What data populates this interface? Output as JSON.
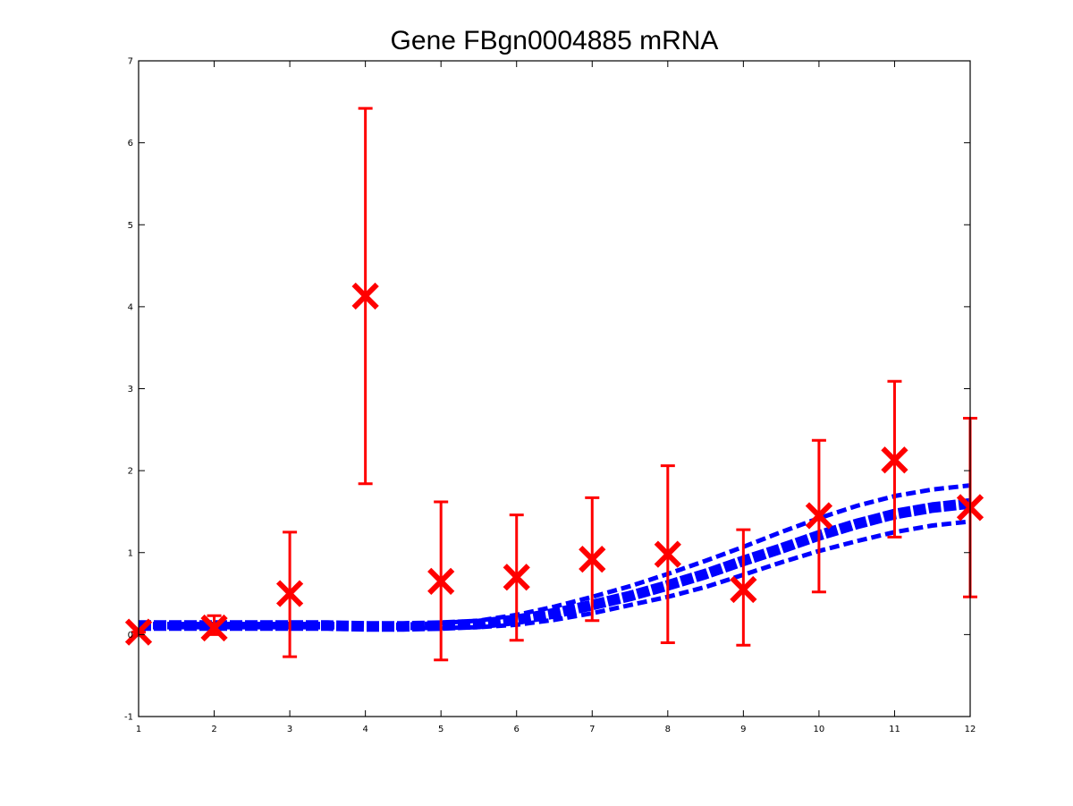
{
  "chart_data": {
    "type": "line",
    "title": "Gene FBgn0004885 mRNA",
    "xlabel": "",
    "ylabel": "",
    "xlim": [
      1,
      12
    ],
    "ylim": [
      -1,
      7
    ],
    "xticks": [
      "1",
      "2",
      "3",
      "4",
      "5",
      "6",
      "7",
      "8",
      "9",
      "10",
      "11",
      "12"
    ],
    "yticks": [
      "-1",
      "0",
      "1",
      "2",
      "3",
      "4",
      "5",
      "6",
      "7"
    ],
    "grid": false,
    "colors": {
      "model": "#0000ff",
      "data": "#ff0000"
    },
    "series": [
      {
        "kind": "mean",
        "style": "solid",
        "x": [
          1,
          1.5,
          2,
          2.5,
          3,
          3.5,
          4,
          4.5,
          5,
          5.5,
          6,
          6.5,
          7,
          7.5,
          8,
          8.5,
          9,
          9.5,
          10,
          10.5,
          11,
          11.5,
          12
        ],
        "values": [
          0.11,
          0.11,
          0.11,
          0.11,
          0.11,
          0.11,
          0.1,
          0.1,
          0.11,
          0.13,
          0.18,
          0.26,
          0.36,
          0.47,
          0.6,
          0.74,
          0.9,
          1.05,
          1.21,
          1.35,
          1.47,
          1.55,
          1.6
        ]
      },
      {
        "kind": "upper-bound",
        "style": "dashed",
        "x": [
          1,
          1.5,
          2,
          2.5,
          3,
          3.5,
          4,
          4.5,
          5,
          5.5,
          6,
          6.5,
          7,
          7.5,
          8,
          8.5,
          9,
          9.5,
          10,
          10.5,
          11,
          11.5,
          12
        ],
        "values": [
          0.13,
          0.13,
          0.13,
          0.13,
          0.13,
          0.13,
          0.12,
          0.12,
          0.14,
          0.17,
          0.24,
          0.34,
          0.46,
          0.59,
          0.74,
          0.9,
          1.07,
          1.25,
          1.42,
          1.57,
          1.69,
          1.77,
          1.82
        ]
      },
      {
        "kind": "lower-bound",
        "style": "dashed",
        "x": [
          1,
          1.5,
          2,
          2.5,
          3,
          3.5,
          4,
          4.5,
          5,
          5.5,
          6,
          6.5,
          7,
          7.5,
          8,
          8.5,
          9,
          9.5,
          10,
          10.5,
          11,
          11.5,
          12
        ],
        "values": [
          0.09,
          0.09,
          0.09,
          0.09,
          0.09,
          0.09,
          0.08,
          0.08,
          0.08,
          0.09,
          0.12,
          0.18,
          0.26,
          0.36,
          0.46,
          0.58,
          0.73,
          0.88,
          1.02,
          1.14,
          1.25,
          1.33,
          1.38
        ]
      }
    ],
    "observations": {
      "marker": "x",
      "x": [
        1,
        2,
        3,
        4,
        5,
        6,
        7,
        8,
        9,
        10,
        11,
        12
      ],
      "values": [
        0.03,
        0.08,
        0.5,
        4.13,
        0.65,
        0.7,
        0.92,
        0.98,
        0.55,
        1.45,
        2.13,
        1.55
      ],
      "error_low": [
        0.03,
        0.0,
        -0.27,
        1.84,
        -0.31,
        -0.07,
        0.17,
        -0.1,
        -0.13,
        0.52,
        1.19,
        0.46
      ],
      "error_high": [
        0.03,
        0.23,
        1.25,
        6.42,
        1.62,
        1.46,
        1.67,
        2.06,
        1.28,
        2.37,
        3.09,
        2.64
      ]
    }
  }
}
